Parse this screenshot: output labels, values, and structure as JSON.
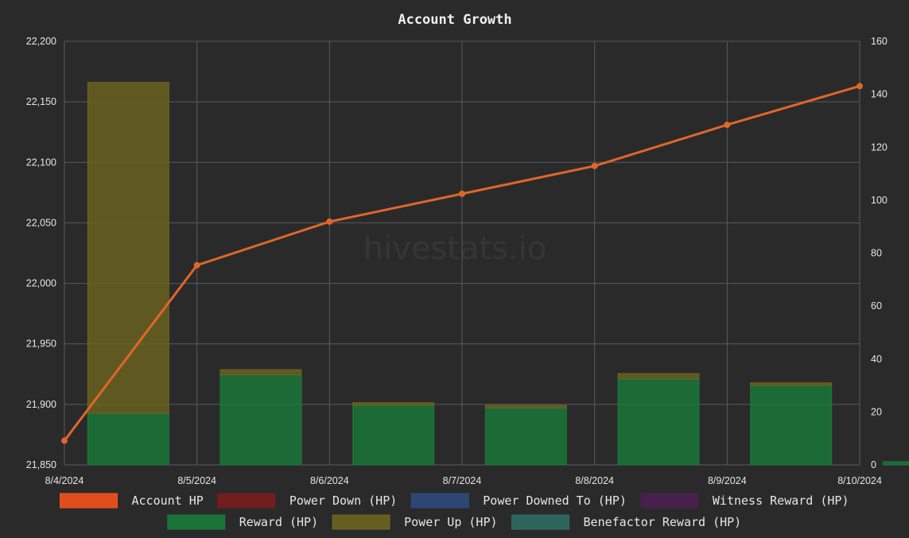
{
  "title": "Account Growth",
  "watermark": "hivestats.io",
  "colors": {
    "background": "#2a2a2b",
    "grid": "#5a5a5e",
    "line": "#e0662a",
    "reward": "#1a7a3a",
    "power_up": "#6b6420"
  },
  "chart_data": {
    "type": "bar",
    "title": "Account Growth",
    "x": [
      "8/4/2024",
      "8/5/2024",
      "8/6/2024",
      "8/7/2024",
      "8/8/2024",
      "8/9/2024",
      "8/10/2024"
    ],
    "y_left": {
      "ylim": [
        21850,
        22200
      ],
      "ticks": [
        "21,850",
        "21,900",
        "21,950",
        "22,000",
        "22,050",
        "22,100",
        "22,150",
        "22,200"
      ]
    },
    "y_right": {
      "ylim": [
        0,
        160
      ],
      "ticks": [
        "0",
        "20",
        "40",
        "60",
        "80",
        "100",
        "120",
        "140",
        "160"
      ]
    },
    "grid": true,
    "legend_position": "bottom",
    "series": [
      {
        "name": "Account HP",
        "type": "line",
        "axis": "left",
        "color": "#f4511e",
        "values": [
          21870,
          22015,
          22051,
          22074,
          22097,
          22131,
          22163
        ]
      },
      {
        "name": "Power Down (HP)",
        "type": "bar",
        "axis": "right",
        "color": "#7a1c1c",
        "values": [
          0,
          0,
          0,
          0,
          0,
          0,
          0
        ]
      },
      {
        "name": "Power Downed To (HP)",
        "type": "bar",
        "axis": "right",
        "color": "#2c4a7a",
        "values": [
          0,
          0,
          0,
          0,
          0,
          0,
          0
        ]
      },
      {
        "name": "Witness Reward (HP)",
        "type": "bar",
        "axis": "right",
        "color": "#4a2050",
        "values": [
          0,
          0,
          0,
          0,
          0,
          0,
          0
        ]
      },
      {
        "name": "Reward (HP)",
        "type": "bar",
        "axis": "right",
        "color": "#1a7a3a",
        "values": [
          19.5,
          34,
          22.5,
          21.5,
          32.5,
          30,
          1.2
        ]
      },
      {
        "name": "Power Up (HP)",
        "type": "bar",
        "axis": "right",
        "color": "#6b6420",
        "values": [
          125,
          2,
          1,
          1,
          2,
          1,
          0
        ]
      },
      {
        "name": "Benefactor Reward (HP)",
        "type": "bar",
        "axis": "right",
        "color": "#2e6b62",
        "values": [
          0,
          0,
          0,
          0,
          0,
          0,
          0
        ]
      }
    ]
  }
}
